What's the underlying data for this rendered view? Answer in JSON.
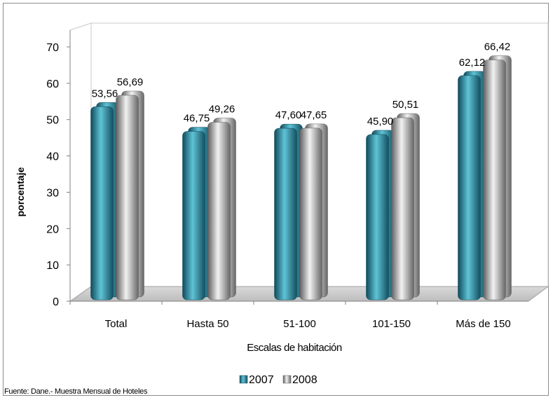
{
  "chart_data": {
    "type": "bar",
    "categories": [
      "Total",
      "Hasta 50",
      "51-100",
      "101-150",
      "Más de 150"
    ],
    "series": [
      {
        "name": "2007",
        "values": [
          53.56,
          46.75,
          47.6,
          45.9,
          62.12
        ],
        "labels": [
          "53,56",
          "46,75",
          "47,60",
          "45,90",
          "62,12"
        ]
      },
      {
        "name": "2008",
        "values": [
          56.69,
          49.26,
          47.65,
          50.51,
          66.42
        ],
        "labels": [
          "56,69",
          "49,26",
          "47,65",
          "50,51",
          "66,42"
        ]
      }
    ],
    "xlabel": "Escalas de habitación",
    "ylabel": "porcentaje",
    "ylim": [
      0,
      70
    ],
    "yticks": [
      "0",
      "10",
      "20",
      "30",
      "40",
      "50",
      "60",
      "70"
    ],
    "grid": false,
    "legend": "bottom",
    "colors": {
      "2007": "#2a7f95",
      "2008": "#a6a6a6"
    }
  },
  "footer": {
    "source": "Fuente: Dane.- Muestra Mensual de Hoteles"
  }
}
